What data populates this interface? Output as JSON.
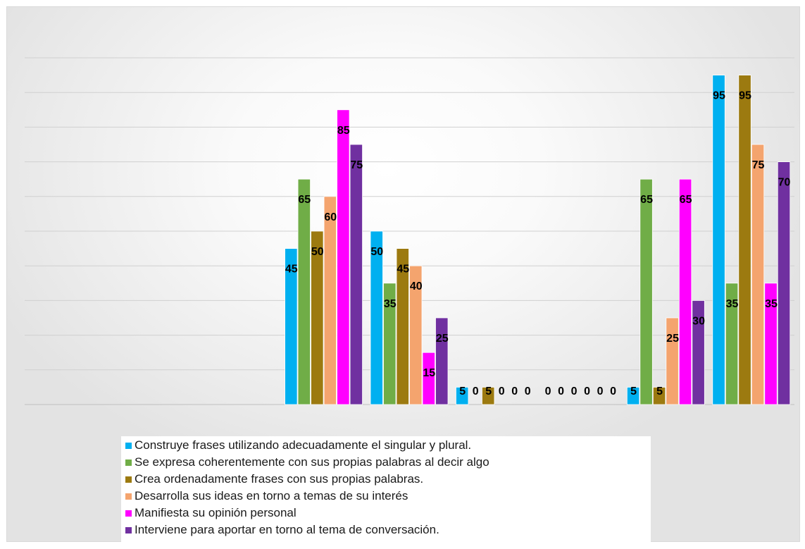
{
  "chart_data": {
    "type": "bar",
    "categories": [
      "",
      "",
      "",
      "",
      "",
      "",
      "",
      "",
      ""
    ],
    "series": [
      {
        "name": "Construye frases utilizando adecuadamente el singular y plural.",
        "color": "#00b0f0",
        "values": [
          null,
          null,
          null,
          45,
          50,
          5,
          0,
          5,
          95
        ]
      },
      {
        "name": "Se expresa coherentemente con sus propias palabras al decir algo",
        "color": "#70ad47",
        "values": [
          null,
          null,
          null,
          65,
          35,
          0,
          0,
          65,
          35
        ]
      },
      {
        "name": "Crea ordenadamente frases con sus propias palabras.",
        "color": "#9c7a10",
        "values": [
          null,
          null,
          null,
          50,
          45,
          5,
          0,
          5,
          95
        ]
      },
      {
        "name": "Desarrolla sus ideas en torno a temas de su interés",
        "color": "#f4a46e",
        "values": [
          null,
          null,
          null,
          60,
          40,
          0,
          0,
          25,
          75
        ]
      },
      {
        "name": "Manifiesta su opinión personal",
        "color": "#ff00ff",
        "values": [
          null,
          null,
          null,
          85,
          15,
          0,
          0,
          65,
          35
        ]
      },
      {
        "name": "Interviene para aportar en torno al tema de conversación.",
        "color": "#7030a0",
        "values": [
          null,
          null,
          null,
          75,
          25,
          0,
          0,
          30,
          70
        ]
      }
    ],
    "ylim": [
      0,
      100
    ],
    "gridlines": true,
    "legend_position": "bottom"
  }
}
